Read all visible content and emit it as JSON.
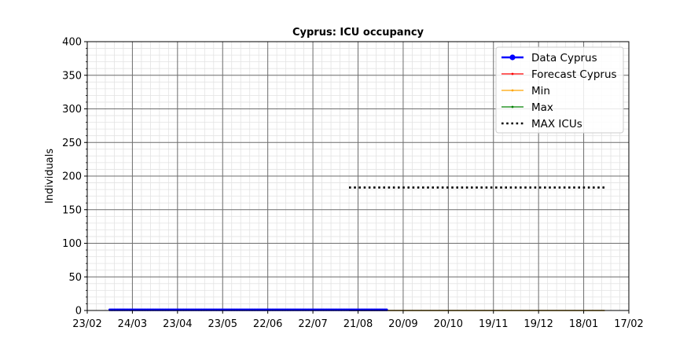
{
  "chart_data": {
    "type": "line",
    "title": "Cyprus: ICU occupancy",
    "xlabel": "",
    "ylabel": "Individuals",
    "ylim": [
      0,
      400
    ],
    "yticks": [
      0,
      50,
      100,
      150,
      200,
      250,
      300,
      350,
      400
    ],
    "xlim": [
      "2020-02-23",
      "2021-02-17"
    ],
    "xticks": [
      {
        "date": "2020-02-23",
        "label": "23/02"
      },
      {
        "date": "2020-03-24",
        "label": "24/03"
      },
      {
        "date": "2020-04-23",
        "label": "23/04"
      },
      {
        "date": "2020-05-23",
        "label": "23/05"
      },
      {
        "date": "2020-06-22",
        "label": "22/06"
      },
      {
        "date": "2020-07-22",
        "label": "22/07"
      },
      {
        "date": "2020-08-21",
        "label": "21/08"
      },
      {
        "date": "2020-09-20",
        "label": "20/09"
      },
      {
        "date": "2020-10-20",
        "label": "20/10"
      },
      {
        "date": "2020-11-19",
        "label": "19/11"
      },
      {
        "date": "2020-12-19",
        "label": "19/12"
      },
      {
        "date": "2021-01-18",
        "label": "18/01"
      },
      {
        "date": "2021-02-17",
        "label": "17/02"
      }
    ],
    "grid": true,
    "legend_position": "top-right",
    "series": [
      {
        "name": "Data Cyprus",
        "color": "#0000ff",
        "style": "solid-marker",
        "x_start": "2020-03-09",
        "x_end": "2020-09-09",
        "value": 1
      },
      {
        "name": "Forecast Cyprus",
        "color": "#ff0000",
        "style": "thin-marker",
        "x_start": "2020-08-15",
        "x_end": "2021-02-01",
        "value": 0
      },
      {
        "name": "Min",
        "color": "#ffa500",
        "style": "thin-marker",
        "x_start": "2020-08-15",
        "x_end": "2021-02-01",
        "value": 0
      },
      {
        "name": "Max",
        "color": "#008000",
        "style": "thin-marker",
        "x_start": "2020-08-15",
        "x_end": "2021-02-01",
        "value": 0
      },
      {
        "name": "MAX ICUs",
        "color": "#000000",
        "style": "dotted",
        "x_start": "2020-08-15",
        "x_end": "2021-02-01",
        "value": 183
      }
    ]
  }
}
